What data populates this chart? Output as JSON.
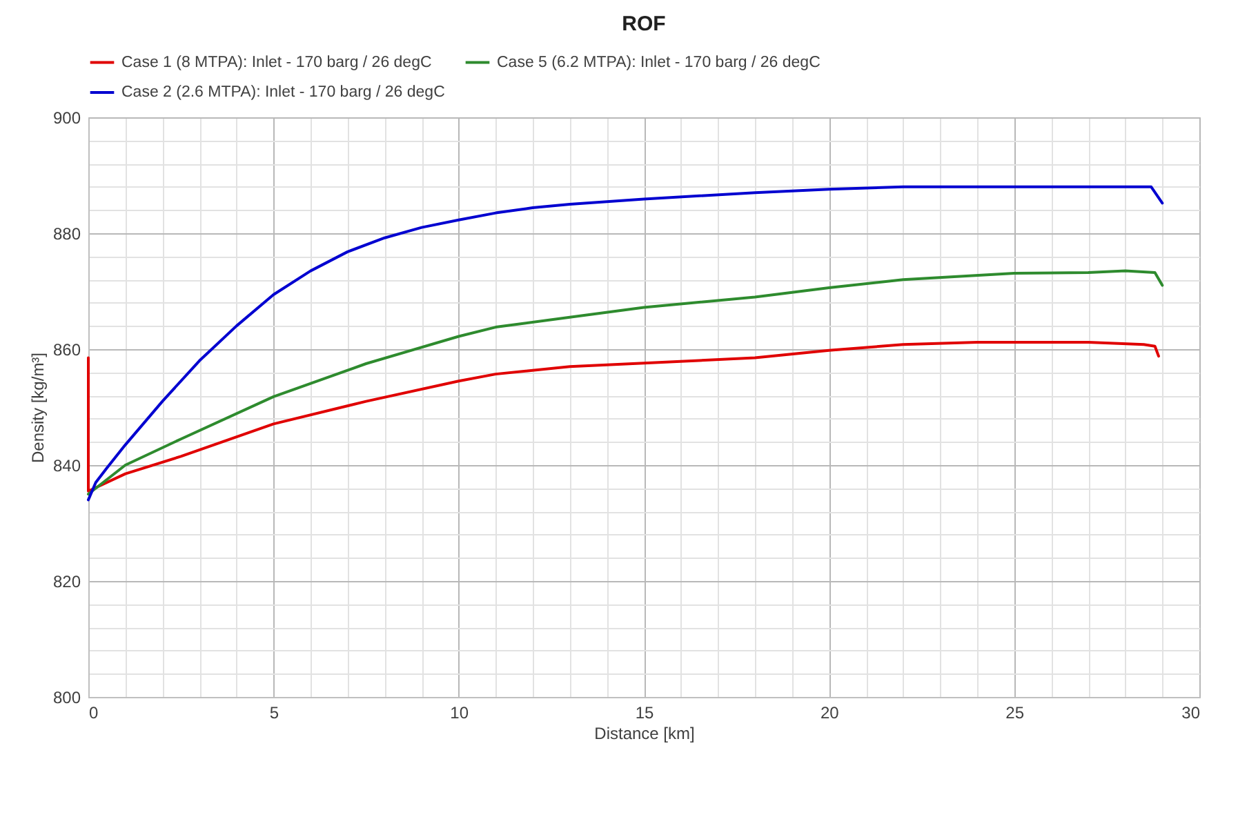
{
  "chart_data": {
    "type": "line",
    "title": "ROF",
    "xlabel": "Distance [km]",
    "ylabel": "Density [kg/m³]",
    "legend": "top",
    "grid": true,
    "marker": "none",
    "line_style": "solid",
    "xlim": [
      0,
      30
    ],
    "ylim": [
      800,
      900
    ],
    "xticks": [
      0,
      {
        "value": 1,
        "label": null
      },
      {
        "value": 2,
        "label": null
      },
      {
        "value": 3,
        "label": null
      },
      {
        "value": 4,
        "label": null
      },
      5,
      {
        "value": 6,
        "label": null
      },
      {
        "value": 7,
        "label": null
      },
      {
        "value": 8,
        "label": null
      },
      {
        "value": 9,
        "label": null
      },
      10,
      {
        "value": 11,
        "label": null
      },
      {
        "value": 12,
        "label": null
      },
      {
        "value": 13,
        "label": null
      },
      {
        "value": 14,
        "label": null
      },
      15,
      {
        "value": 16,
        "label": null
      },
      {
        "value": 17,
        "label": null
      },
      {
        "value": 18,
        "label": null
      },
      {
        "value": 19,
        "label": null
      },
      20,
      {
        "value": 21,
        "label": null
      },
      {
        "value": 22,
        "label": null
      },
      {
        "value": 23,
        "label": null
      },
      {
        "value": 24,
        "label": null
      },
      25,
      {
        "value": 26,
        "label": null
      },
      {
        "value": 27,
        "label": null
      },
      {
        "value": 28,
        "label": null
      },
      {
        "value": 29,
        "label": null
      },
      30
    ],
    "yticks": [
      800,
      {
        "value": 804,
        "label": null
      },
      {
        "value": 808,
        "label": null
      },
      {
        "value": 812,
        "label": null
      },
      {
        "value": 816,
        "label": null
      },
      820,
      {
        "value": 824,
        "label": null
      },
      {
        "value": 828,
        "label": null
      },
      {
        "value": 832,
        "label": null
      },
      {
        "value": 836,
        "label": null
      },
      840,
      {
        "value": 844,
        "label": null
      },
      {
        "value": 848,
        "label": null
      },
      {
        "value": 852,
        "label": null
      },
      {
        "value": 856,
        "label": null
      },
      860,
      {
        "value": 864,
        "label": null
      },
      {
        "value": 868,
        "label": null
      },
      {
        "value": 872,
        "label": null
      },
      {
        "value": 876,
        "label": null
      },
      880,
      {
        "value": 884,
        "label": null
      },
      {
        "value": 888,
        "label": null
      },
      {
        "value": 892,
        "label": null
      },
      {
        "value": 896,
        "label": null
      },
      900
    ],
    "series": [
      {
        "name": "Case 1 (8 MTPA): Inlet - 170 barg / 26 degC",
        "color": "#e00000",
        "x": [
          0,
          0,
          1,
          2.5,
          5,
          7.5,
          10,
          11,
          13,
          15,
          18,
          20,
          22,
          24,
          27,
          28.5,
          28.8,
          28.9
        ],
        "values": [
          858.5,
          835.5,
          838.5,
          841.5,
          847.1,
          851,
          854.5,
          855.7,
          857,
          857.6,
          858.5,
          859.8,
          860.8,
          861.2,
          861.2,
          860.8,
          860.5,
          858.8
        ]
      },
      {
        "name": "Case 5 (6.2 MTPA): Inlet - 170 barg / 26 degC",
        "color": "#2e8b2e",
        "x": [
          0,
          1,
          2.5,
          5,
          7.5,
          10,
          11,
          13,
          15,
          18,
          20,
          22,
          25,
          27,
          28,
          28.8,
          29
        ],
        "values": [
          835,
          840,
          844.5,
          851.8,
          857.5,
          862.2,
          863.8,
          865.5,
          867.2,
          869,
          870.6,
          872,
          873.1,
          873.2,
          873.5,
          873.2,
          871
        ]
      },
      {
        "name": "Case 2 (2.6 MTPA): Inlet - 170 barg / 26 degC",
        "color": "#0000d0",
        "x": [
          0,
          0.2,
          0.5,
          1,
          2,
          3,
          4,
          5,
          6,
          7,
          8,
          9,
          10,
          11,
          12,
          13,
          15,
          18,
          20,
          22,
          25,
          28.7,
          29
        ],
        "values": [
          834,
          837,
          839.5,
          843.5,
          851,
          858,
          864,
          869.4,
          873.5,
          876.8,
          879.2,
          881,
          882.3,
          883.5,
          884.4,
          885,
          885.9,
          887,
          887.6,
          888,
          888,
          888,
          885.2
        ]
      }
    ]
  }
}
